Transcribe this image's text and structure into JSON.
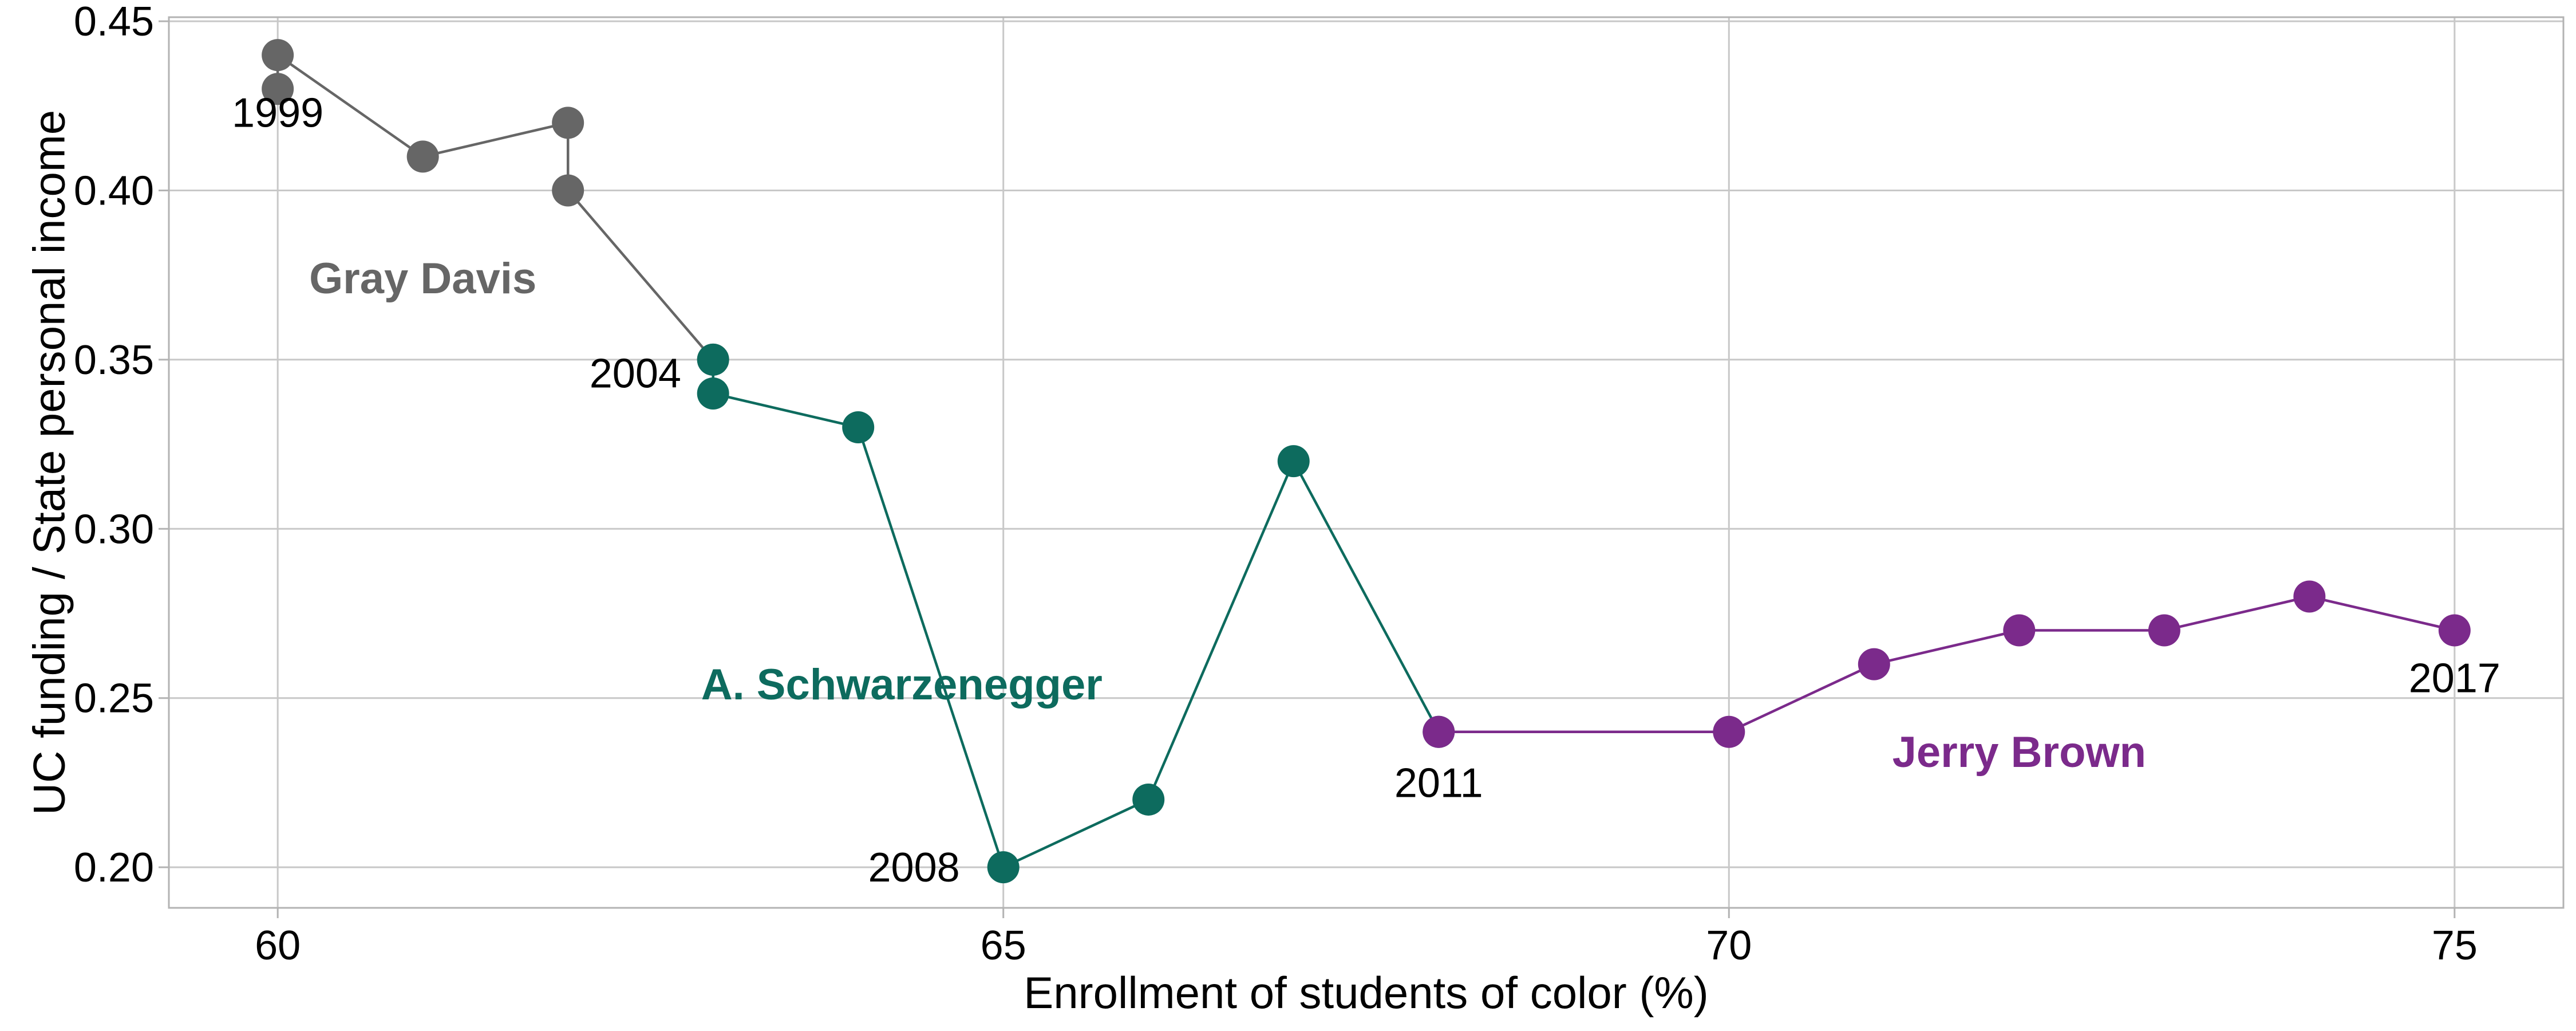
{
  "chart_data": {
    "type": "line",
    "title": "",
    "xlabel": "Enrollment of students of color (%)",
    "ylabel": "UC funding / State  personal income",
    "xlim": [
      59.25,
      75.75
    ],
    "ylim": [
      0.188,
      0.4512
    ],
    "xticks": [
      60,
      65,
      70,
      75
    ],
    "xtick_labels": [
      "60",
      "65",
      "70",
      "75"
    ],
    "yticks": [
      0.2,
      0.25,
      0.3,
      0.35,
      0.4,
      0.45
    ],
    "ytick_labels": [
      "0.20",
      "0.25",
      "0.30",
      "0.35",
      "0.40",
      "0.45"
    ],
    "grid": true,
    "legend": "none",
    "series": [
      {
        "name": "Gray Davis",
        "color": "#666666",
        "x": [
          60,
          60,
          61,
          62,
          62,
          63
        ],
        "y": [
          0.43,
          0.44,
          0.41,
          0.42,
          0.4,
          0.35
        ]
      },
      {
        "name": "A. Schwarzenegger",
        "color": "#0d6b5e",
        "x": [
          63,
          63,
          64,
          65,
          66,
          67,
          68
        ],
        "y": [
          0.35,
          0.34,
          0.33,
          0.2,
          0.22,
          0.32,
          0.24
        ]
      },
      {
        "name": "Jerry Brown",
        "color": "#7b2a8b",
        "x": [
          68,
          70,
          71,
          72,
          73,
          74,
          75
        ],
        "y": [
          0.24,
          0.24,
          0.26,
          0.27,
          0.27,
          0.28,
          0.27
        ]
      }
    ],
    "annotations": [
      {
        "text": "1999",
        "x": 60.0,
        "y": 0.423,
        "anchor": "middle"
      },
      {
        "text": "2004",
        "x": 62.78,
        "y": 0.346,
        "anchor": "end"
      },
      {
        "text": "2008",
        "x": 64.7,
        "y": 0.2,
        "anchor": "end"
      },
      {
        "text": "2011",
        "x": 68.0,
        "y": 0.225,
        "anchor": "middle"
      },
      {
        "text": "2017",
        "x": 75.0,
        "y": 0.256,
        "anchor": "middle"
      }
    ],
    "series_labels": [
      {
        "series": "Gray Davis",
        "x": 61.0,
        "y": 0.374,
        "anchor": "middle"
      },
      {
        "series": "A. Schwarzenegger",
        "x": 64.3,
        "y": 0.254,
        "anchor": "middle"
      },
      {
        "series": "Jerry Brown",
        "x": 72.0,
        "y": 0.234,
        "anchor": "middle"
      }
    ]
  }
}
